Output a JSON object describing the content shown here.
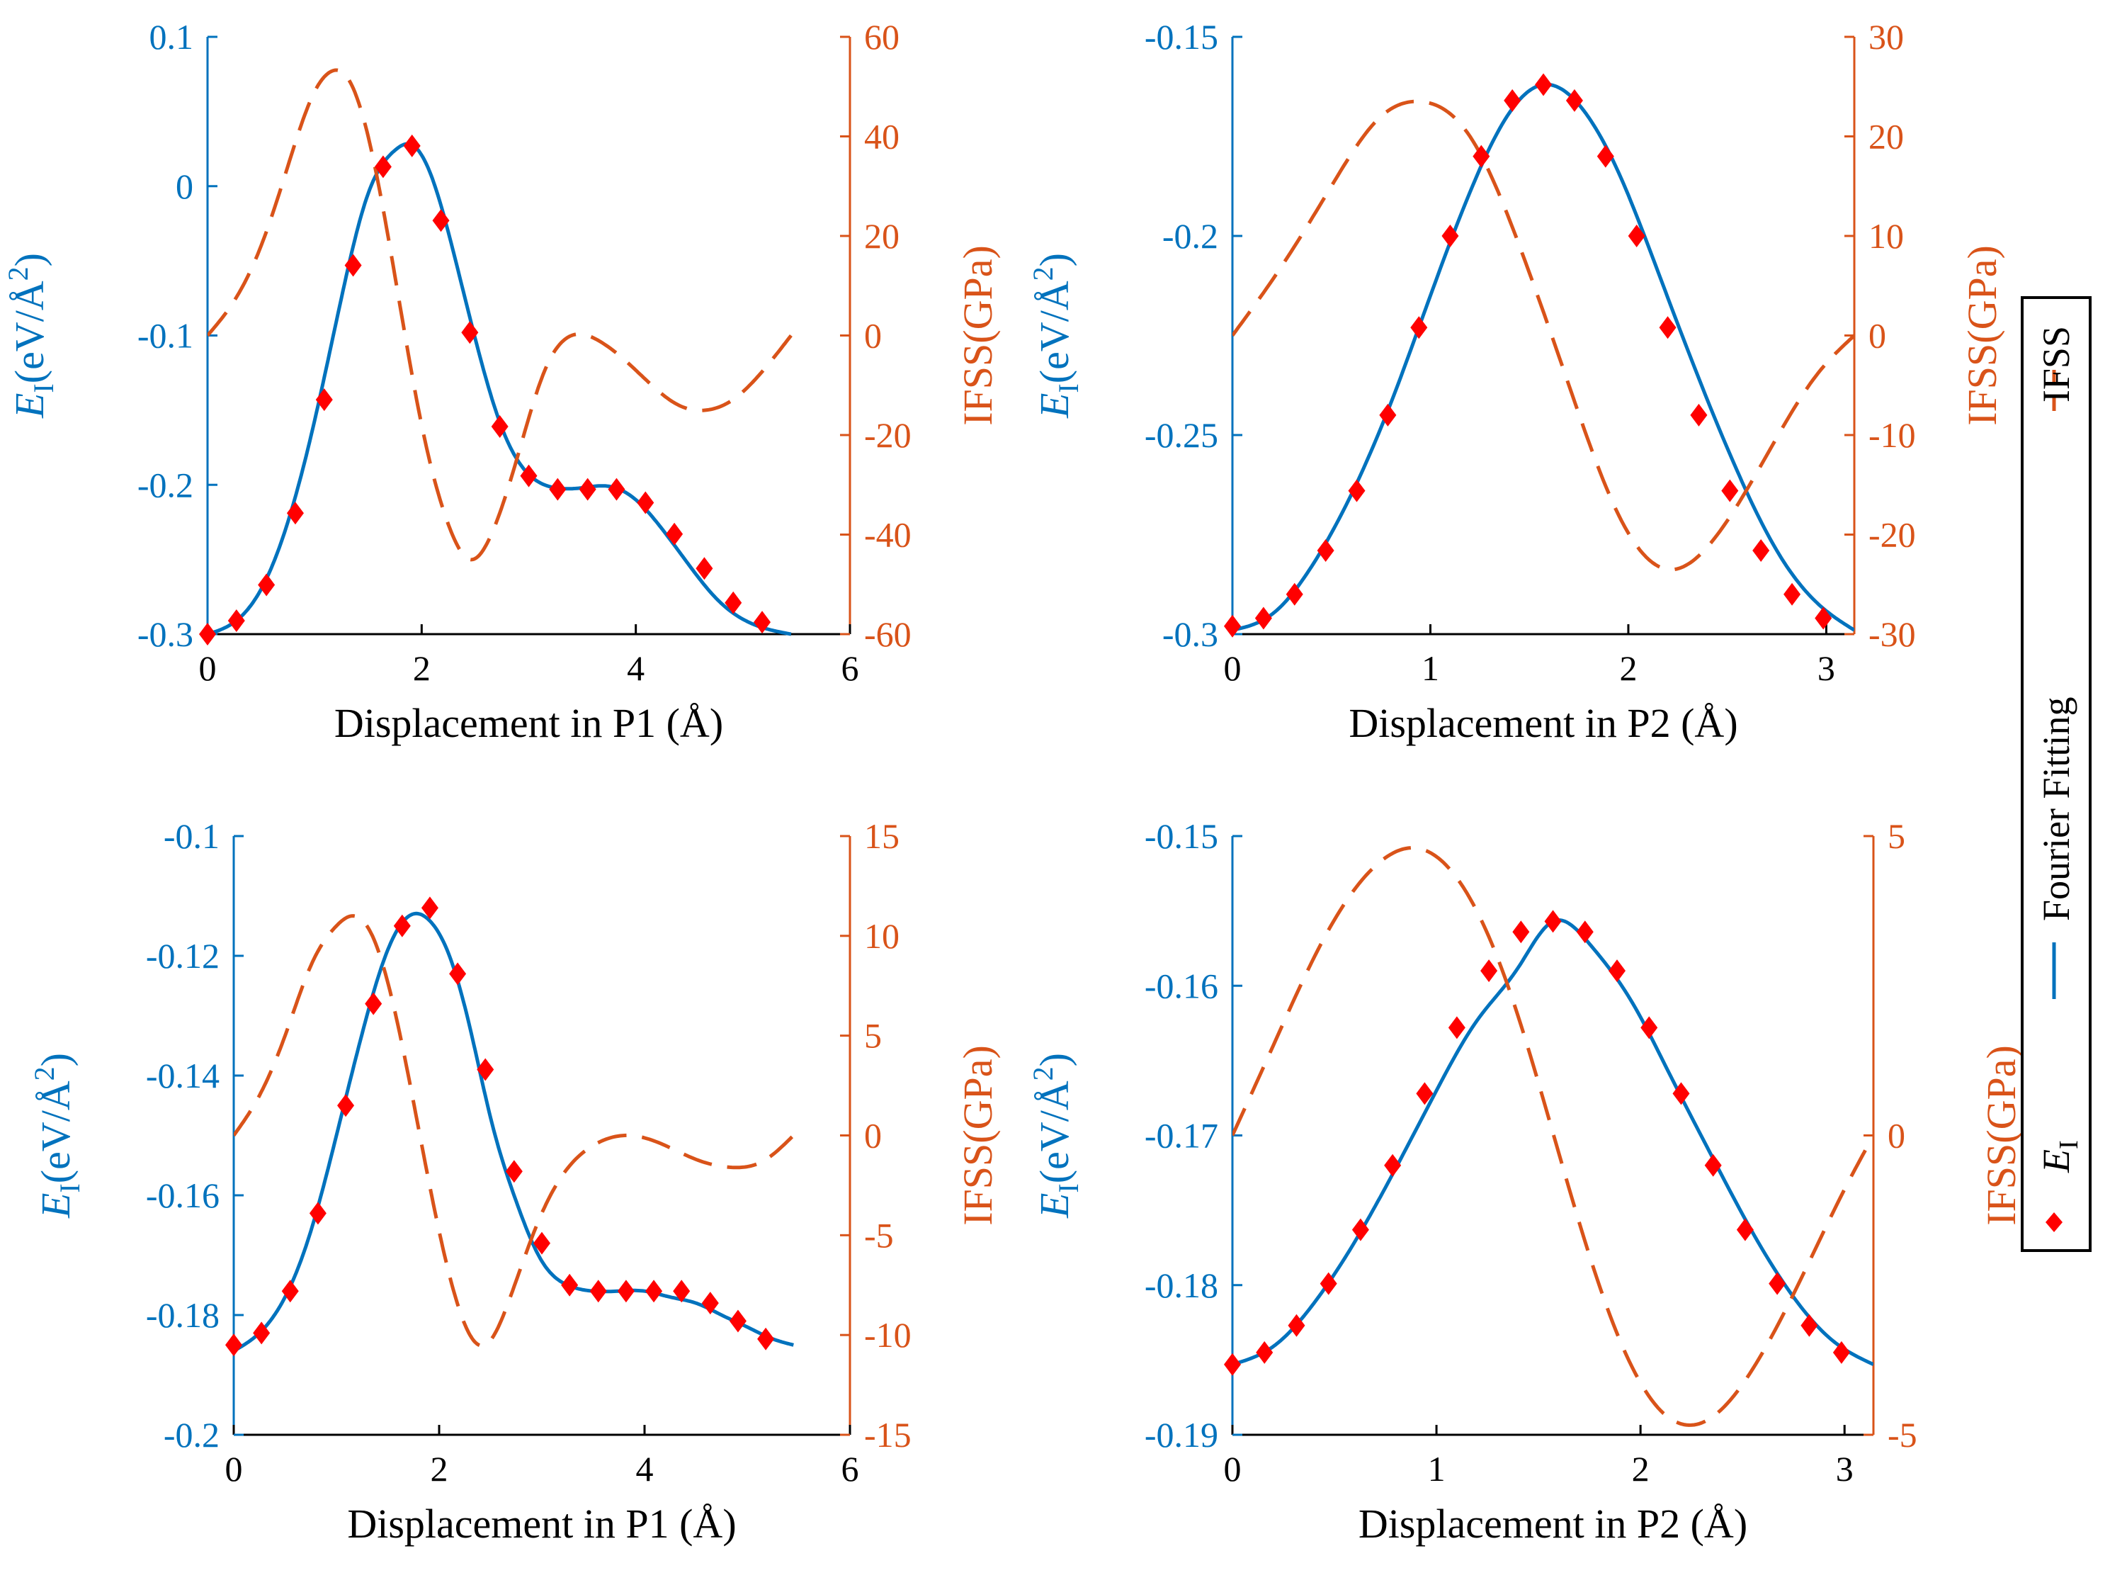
{
  "colors": {
    "left_axis": "#0072BD",
    "right_axis": "#D95319",
    "ei_marker": "#FF0000",
    "fit_line": "#0072BD",
    "ifss_line": "#D95319",
    "frame": "#000000"
  },
  "legend": {
    "placement": "right, rotated vertically",
    "entries": [
      {
        "label": "Fourier Fitting",
        "symbol": "solid-line"
      },
      {
        "label": "IFSS",
        "symbol": "dashed-line"
      },
      {
        "label_main": "E",
        "label_sub": "I",
        "symbol": "diamond-marker"
      }
    ]
  },
  "chart_data": [
    {
      "type": "line",
      "panel": "top-left",
      "xlabel": "Displacement in P1 (Å)",
      "ylabel_left": {
        "main": "E",
        "sub": "I",
        "rest": "(eV/Å",
        "sup": "2",
        "close": ")"
      },
      "ylabel_right": "IFSS(GPa)",
      "xlim": [
        0,
        6
      ],
      "ylim_left": [
        -0.3,
        0.1
      ],
      "ylim_right": [
        -60,
        60
      ],
      "xticks": [
        0,
        2,
        4,
        6
      ],
      "xtick_labels": [
        "0",
        "2",
        "4",
        "6"
      ],
      "yticks_left": [
        -0.3,
        -0.2,
        -0.1,
        0,
        0.1
      ],
      "ytick_labels_left": [
        "-0.3",
        "-0.2",
        "-0.1",
        "0",
        "0.1"
      ],
      "yticks_right": [
        -60,
        -40,
        -20,
        0,
        20,
        40,
        60
      ],
      "ytick_labels_right": [
        "-60",
        "-40",
        "-20",
        "0",
        "20",
        "40",
        "60"
      ],
      "grid": false,
      "series": [
        {
          "name": "E_I",
          "axis": "left",
          "style": "markers",
          "x": [
            0,
            0.27,
            0.55,
            0.82,
            1.09,
            1.36,
            1.64,
            1.91,
            2.18,
            2.45,
            2.73,
            3.0,
            3.27,
            3.55,
            3.82,
            4.09,
            4.36,
            4.64,
            4.91,
            5.18
          ],
          "y": [
            -0.3,
            -0.291,
            -0.267,
            -0.219,
            -0.143,
            -0.053,
            0.013,
            0.027,
            -0.023,
            -0.098,
            -0.161,
            -0.194,
            -0.203,
            -0.203,
            -0.203,
            -0.212,
            -0.233,
            -0.256,
            -0.279,
            -0.292
          ]
        },
        {
          "name": "Fourier Fitting",
          "axis": "left",
          "style": "solid",
          "x": [
            0,
            0.25,
            0.5,
            0.75,
            1.0,
            1.25,
            1.5,
            1.75,
            1.9,
            2.1,
            2.3,
            2.5,
            2.75,
            3.0,
            3.25,
            3.5,
            3.75,
            4.0,
            4.25,
            4.5,
            4.75,
            5.0,
            5.25,
            5.45
          ],
          "y": [
            -0.3,
            -0.292,
            -0.27,
            -0.225,
            -0.157,
            -0.075,
            -0.005,
            0.024,
            0.028,
            0.005,
            -0.045,
            -0.102,
            -0.162,
            -0.193,
            -0.202,
            -0.202,
            -0.201,
            -0.21,
            -0.23,
            -0.254,
            -0.276,
            -0.29,
            -0.297,
            -0.3
          ]
        },
        {
          "name": "IFSS",
          "axis": "right",
          "style": "dashed",
          "x": [
            0,
            0.25,
            0.5,
            0.75,
            1.0,
            1.15,
            1.3,
            1.5,
            1.75,
            2.0,
            2.25,
            2.45,
            2.65,
            2.9,
            3.15,
            3.4,
            3.65,
            3.9,
            4.15,
            4.4,
            4.65,
            4.9,
            5.15,
            5.45
          ],
          "y": [
            0,
            7,
            18,
            34,
            49,
            53,
            52,
            40,
            12,
            -18,
            -38,
            -45,
            -40,
            -24,
            -7,
            0,
            -1,
            -5,
            -10,
            -14,
            -15,
            -13,
            -8,
            0
          ]
        }
      ]
    },
    {
      "type": "line",
      "panel": "top-right",
      "xlabel": "Displacement in P2 (Å)",
      "ylabel_left": {
        "main": "E",
        "sub": "I",
        "rest": "(eV/Å",
        "sup": "2",
        "close": ")"
      },
      "ylabel_right": "IFSS(GPa)",
      "xlim": [
        0,
        3.1416
      ],
      "ylim_left": [
        -0.3,
        -0.15
      ],
      "ylim_right": [
        -30,
        30
      ],
      "xticks": [
        0,
        1,
        2,
        3
      ],
      "xtick_labels": [
        "0",
        "1",
        "2",
        "3"
      ],
      "yticks_left": [
        -0.3,
        -0.25,
        -0.2,
        -0.15
      ],
      "ytick_labels_left": [
        "-0.3",
        "-0.25",
        "-0.2",
        "-0.15"
      ],
      "yticks_right": [
        -30,
        -20,
        -10,
        0,
        10,
        20,
        30
      ],
      "ytick_labels_right": [
        "-30",
        "-20",
        "-10",
        "0",
        "10",
        "20",
        "30"
      ],
      "grid": false,
      "series": [
        {
          "name": "E_I",
          "axis": "left",
          "style": "markers",
          "x": [
            0,
            0.157,
            0.314,
            0.471,
            0.628,
            0.785,
            0.942,
            1.1,
            1.257,
            1.414,
            1.571,
            1.728,
            1.885,
            2.042,
            2.199,
            2.356,
            2.513,
            2.67,
            2.827,
            2.985
          ],
          "y": [
            -0.298,
            -0.296,
            -0.29,
            -0.279,
            -0.264,
            -0.245,
            -0.223,
            -0.2,
            -0.18,
            -0.166,
            -0.162,
            -0.166,
            -0.18,
            -0.2,
            -0.223,
            -0.245,
            -0.264,
            -0.279,
            -0.29,
            -0.296
          ]
        },
        {
          "name": "Fourier Fitting",
          "axis": "left",
          "style": "solid",
          "x": [
            0,
            0.2,
            0.4,
            0.6,
            0.8,
            1.0,
            1.2,
            1.4,
            1.571,
            1.75,
            1.95,
            2.15,
            2.35,
            2.55,
            2.75,
            2.95,
            3.1416
          ],
          "y": [
            -0.299,
            -0.295,
            -0.283,
            -0.265,
            -0.242,
            -0.215,
            -0.189,
            -0.169,
            -0.162,
            -0.167,
            -0.184,
            -0.209,
            -0.235,
            -0.259,
            -0.279,
            -0.292,
            -0.299
          ]
        },
        {
          "name": "IFSS",
          "axis": "right",
          "style": "dashed",
          "x": [
            0,
            0.25,
            0.5,
            0.75,
            0.95,
            1.2,
            1.45,
            1.7,
            1.95,
            2.2,
            2.45,
            2.7,
            2.95,
            3.1416
          ],
          "y": [
            0,
            7,
            15,
            22,
            23.5,
            20,
            9,
            -5,
            -18,
            -23.5,
            -20,
            -12,
            -4,
            0
          ]
        }
      ]
    },
    {
      "type": "line",
      "panel": "bottom-left",
      "xlabel": "Displacement in P1 (Å)",
      "ylabel_left": {
        "main": "E",
        "sub": "I",
        "rest": "(eV/Å",
        "sup": "2",
        "close": ")"
      },
      "ylabel_right": "IFSS(GPa)",
      "xlim": [
        0,
        6
      ],
      "ylim_left": [
        -0.2,
        -0.1
      ],
      "ylim_right": [
        -15,
        15
      ],
      "xticks": [
        0,
        2,
        4,
        6
      ],
      "xtick_labels": [
        "0",
        "2",
        "4",
        "6"
      ],
      "yticks_left": [
        -0.2,
        -0.18,
        -0.16,
        -0.14,
        -0.12,
        -0.1
      ],
      "ytick_labels_left": [
        "-0.2",
        "-0.18",
        "-0.16",
        "-0.14",
        "-0.12",
        "-0.1"
      ],
      "yticks_right": [
        -15,
        -10,
        -5,
        0,
        5,
        10,
        15
      ],
      "ytick_labels_right": [
        "-15",
        "-10",
        "-5",
        "0",
        "5",
        "10",
        "15"
      ],
      "grid": false,
      "series": [
        {
          "name": "E_I",
          "axis": "left",
          "style": "markers",
          "x": [
            0,
            0.27,
            0.55,
            0.82,
            1.09,
            1.36,
            1.64,
            1.91,
            2.18,
            2.45,
            2.73,
            3.0,
            3.27,
            3.55,
            3.82,
            4.09,
            4.36,
            4.64,
            4.91,
            5.18
          ],
          "y": [
            -0.185,
            -0.183,
            -0.176,
            -0.163,
            -0.145,
            -0.128,
            -0.115,
            -0.112,
            -0.123,
            -0.139,
            -0.156,
            -0.168,
            -0.175,
            -0.176,
            -0.176,
            -0.176,
            -0.176,
            -0.178,
            -0.181,
            -0.184
          ]
        },
        {
          "name": "Fourier Fitting",
          "axis": "left",
          "style": "solid",
          "x": [
            0,
            0.25,
            0.5,
            0.75,
            1.0,
            1.25,
            1.5,
            1.75,
            1.9,
            2.1,
            2.3,
            2.5,
            2.75,
            3.0,
            3.25,
            3.5,
            3.75,
            4.0,
            4.25,
            4.5,
            4.75,
            5.0,
            5.25,
            5.45
          ],
          "y": [
            -0.186,
            -0.183,
            -0.177,
            -0.166,
            -0.15,
            -0.133,
            -0.119,
            -0.113,
            -0.114,
            -0.12,
            -0.132,
            -0.147,
            -0.161,
            -0.171,
            -0.175,
            -0.176,
            -0.176,
            -0.176,
            -0.177,
            -0.178,
            -0.18,
            -0.182,
            -0.184,
            -0.185
          ]
        },
        {
          "name": "IFSS",
          "axis": "right",
          "style": "dashed",
          "x": [
            0,
            0.25,
            0.5,
            0.75,
            1.0,
            1.15,
            1.35,
            1.6,
            1.85,
            2.1,
            2.3,
            2.45,
            2.7,
            2.95,
            3.2,
            3.5,
            3.85,
            4.2,
            4.5,
            4.85,
            5.15,
            5.45
          ],
          "y": [
            0,
            2,
            5,
            8.5,
            10.5,
            11,
            10,
            5.5,
            -1,
            -7,
            -10,
            -10.5,
            -8,
            -4.5,
            -2,
            -0.5,
            0,
            -0.5,
            -1.2,
            -1.6,
            -1.3,
            0
          ]
        }
      ]
    },
    {
      "type": "line",
      "panel": "bottom-right",
      "xlabel": "Displacement in P2 (Å)",
      "ylabel_left": {
        "main": "E",
        "sub": "I",
        "rest": "(eV/Å",
        "sup": "2",
        "close": ")"
      },
      "ylabel_right": "IFSS(GPa)",
      "xlim": [
        0,
        3.1416
      ],
      "ylim_left": [
        -0.19,
        -0.15
      ],
      "ylim_right": [
        -5,
        5
      ],
      "xticks": [
        0,
        1,
        2,
        3
      ],
      "xtick_labels": [
        "0",
        "1",
        "2",
        "3"
      ],
      "yticks_left": [
        -0.19,
        -0.18,
        -0.17,
        -0.16,
        -0.15
      ],
      "ytick_labels_left": [
        "-0.19",
        "-0.18",
        "-0.17",
        "-0.16",
        "-0.15"
      ],
      "yticks_right": [
        -5,
        0,
        5
      ],
      "ytick_labels_right": [
        "-5",
        "0",
        "5"
      ],
      "grid": false,
      "series": [
        {
          "name": "E_I",
          "axis": "left",
          "style": "markers",
          "x": [
            0,
            0.157,
            0.314,
            0.471,
            0.628,
            0.785,
            0.942,
            1.1,
            1.257,
            1.414,
            1.571,
            1.728,
            1.885,
            2.042,
            2.199,
            2.356,
            2.513,
            2.67,
            2.827,
            2.985
          ],
          "y": [
            -0.1853,
            -0.1845,
            -0.1827,
            -0.1799,
            -0.1763,
            -0.172,
            -0.1672,
            -0.1628,
            -0.159,
            -0.1564,
            -0.1557,
            -0.1564,
            -0.159,
            -0.1628,
            -0.1672,
            -0.172,
            -0.1763,
            -0.1799,
            -0.1827,
            -0.1845
          ]
        },
        {
          "name": "Fourier Fitting",
          "axis": "left",
          "style": "solid",
          "x": [
            0,
            0.2,
            0.4,
            0.6,
            0.8,
            1.0,
            1.2,
            1.4,
            1.571,
            1.75,
            1.95,
            2.15,
            2.35,
            2.55,
            2.75,
            2.95,
            3.1416
          ],
          "y": [
            -0.1853,
            -0.1841,
            -0.1812,
            -0.1771,
            -0.1722,
            -0.167,
            -0.1623,
            -0.1588,
            -0.1557,
            -0.1572,
            -0.1609,
            -0.1661,
            -0.1714,
            -0.1765,
            -0.1808,
            -0.1838,
            -0.1853
          ]
        },
        {
          "name": "IFSS",
          "axis": "right",
          "style": "dashed",
          "x": [
            0,
            0.2,
            0.45,
            0.7,
            0.9,
            1.1,
            1.35,
            1.6,
            1.85,
            2.1,
            2.3,
            2.55,
            2.8,
            3.0,
            3.1416
          ],
          "y": [
            0,
            1.5,
            3.3,
            4.5,
            4.8,
            4.3,
            2.5,
            -0.3,
            -3,
            -4.6,
            -4.8,
            -3.9,
            -2.3,
            -0.9,
            0
          ]
        }
      ]
    }
  ]
}
